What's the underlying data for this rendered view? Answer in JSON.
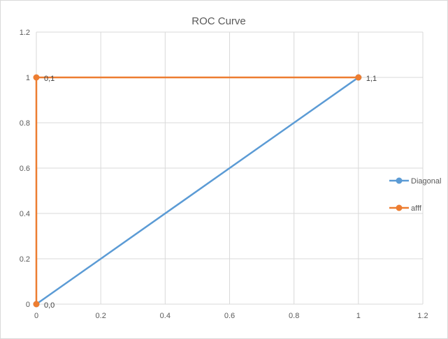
{
  "chart_data": {
    "type": "line",
    "title": "ROC Curve",
    "xlabel": "",
    "ylabel": "",
    "xlim": [
      0,
      1.2
    ],
    "ylim": [
      0,
      1.2
    ],
    "x_ticks": [
      "0",
      "0.2",
      "0.4",
      "0.6",
      "0.8",
      "1",
      "1.2"
    ],
    "y_ticks": [
      "0",
      "0.2",
      "0.4",
      "0.6",
      "0.8",
      "1",
      "1.2"
    ],
    "grid": true,
    "legend_position": "right",
    "series": [
      {
        "name": "Diagonal",
        "color": "#5b9bd5",
        "x": [
          0,
          1
        ],
        "y": [
          0,
          1
        ],
        "labels": [
          "",
          ""
        ]
      },
      {
        "name": "afff",
        "color": "#ed7d31",
        "x": [
          0,
          0,
          1
        ],
        "y": [
          0,
          1,
          1
        ],
        "labels": [
          "0,0",
          "0,1",
          "1,1"
        ]
      }
    ]
  }
}
